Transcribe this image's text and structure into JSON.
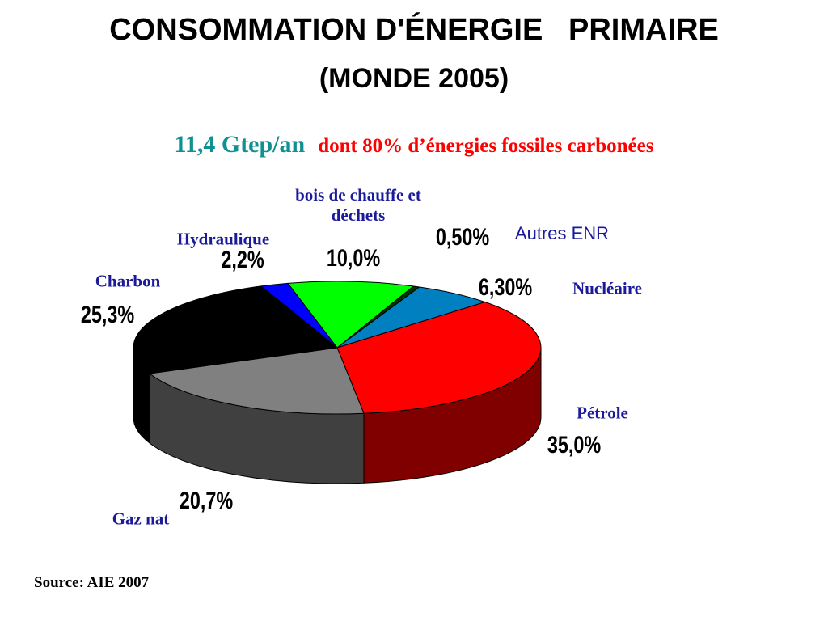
{
  "chart_data": {
    "type": "pie",
    "title": [
      "CONSOMMATION D'ÉNERGIE   PRIMAIRE",
      "(MONDE 2005)"
    ],
    "subtitle": [
      "11,4 Gtep/an",
      "dont 80% d’énergies fossiles carbonées"
    ],
    "categories": [
      "bois de chauffe et déchets",
      "Autres ENR",
      "Nucléaire",
      "Pétrole",
      "Gaz nat",
      "Charbon",
      "Hydraulique"
    ],
    "values": [
      10.0,
      0.5,
      6.3,
      35.0,
      20.7,
      25.3,
      2.2
    ],
    "value_labels": [
      "10,0%",
      "0,50%",
      "6,30%",
      "35,0%",
      "20,7%",
      "25,3%",
      "2,2%"
    ],
    "colors": [
      "#00ff00",
      "#003300",
      "#0080c0",
      "#ff0000",
      "#808080",
      "#000000",
      "#0000ff"
    ],
    "source": "Source: AIE 2007"
  }
}
